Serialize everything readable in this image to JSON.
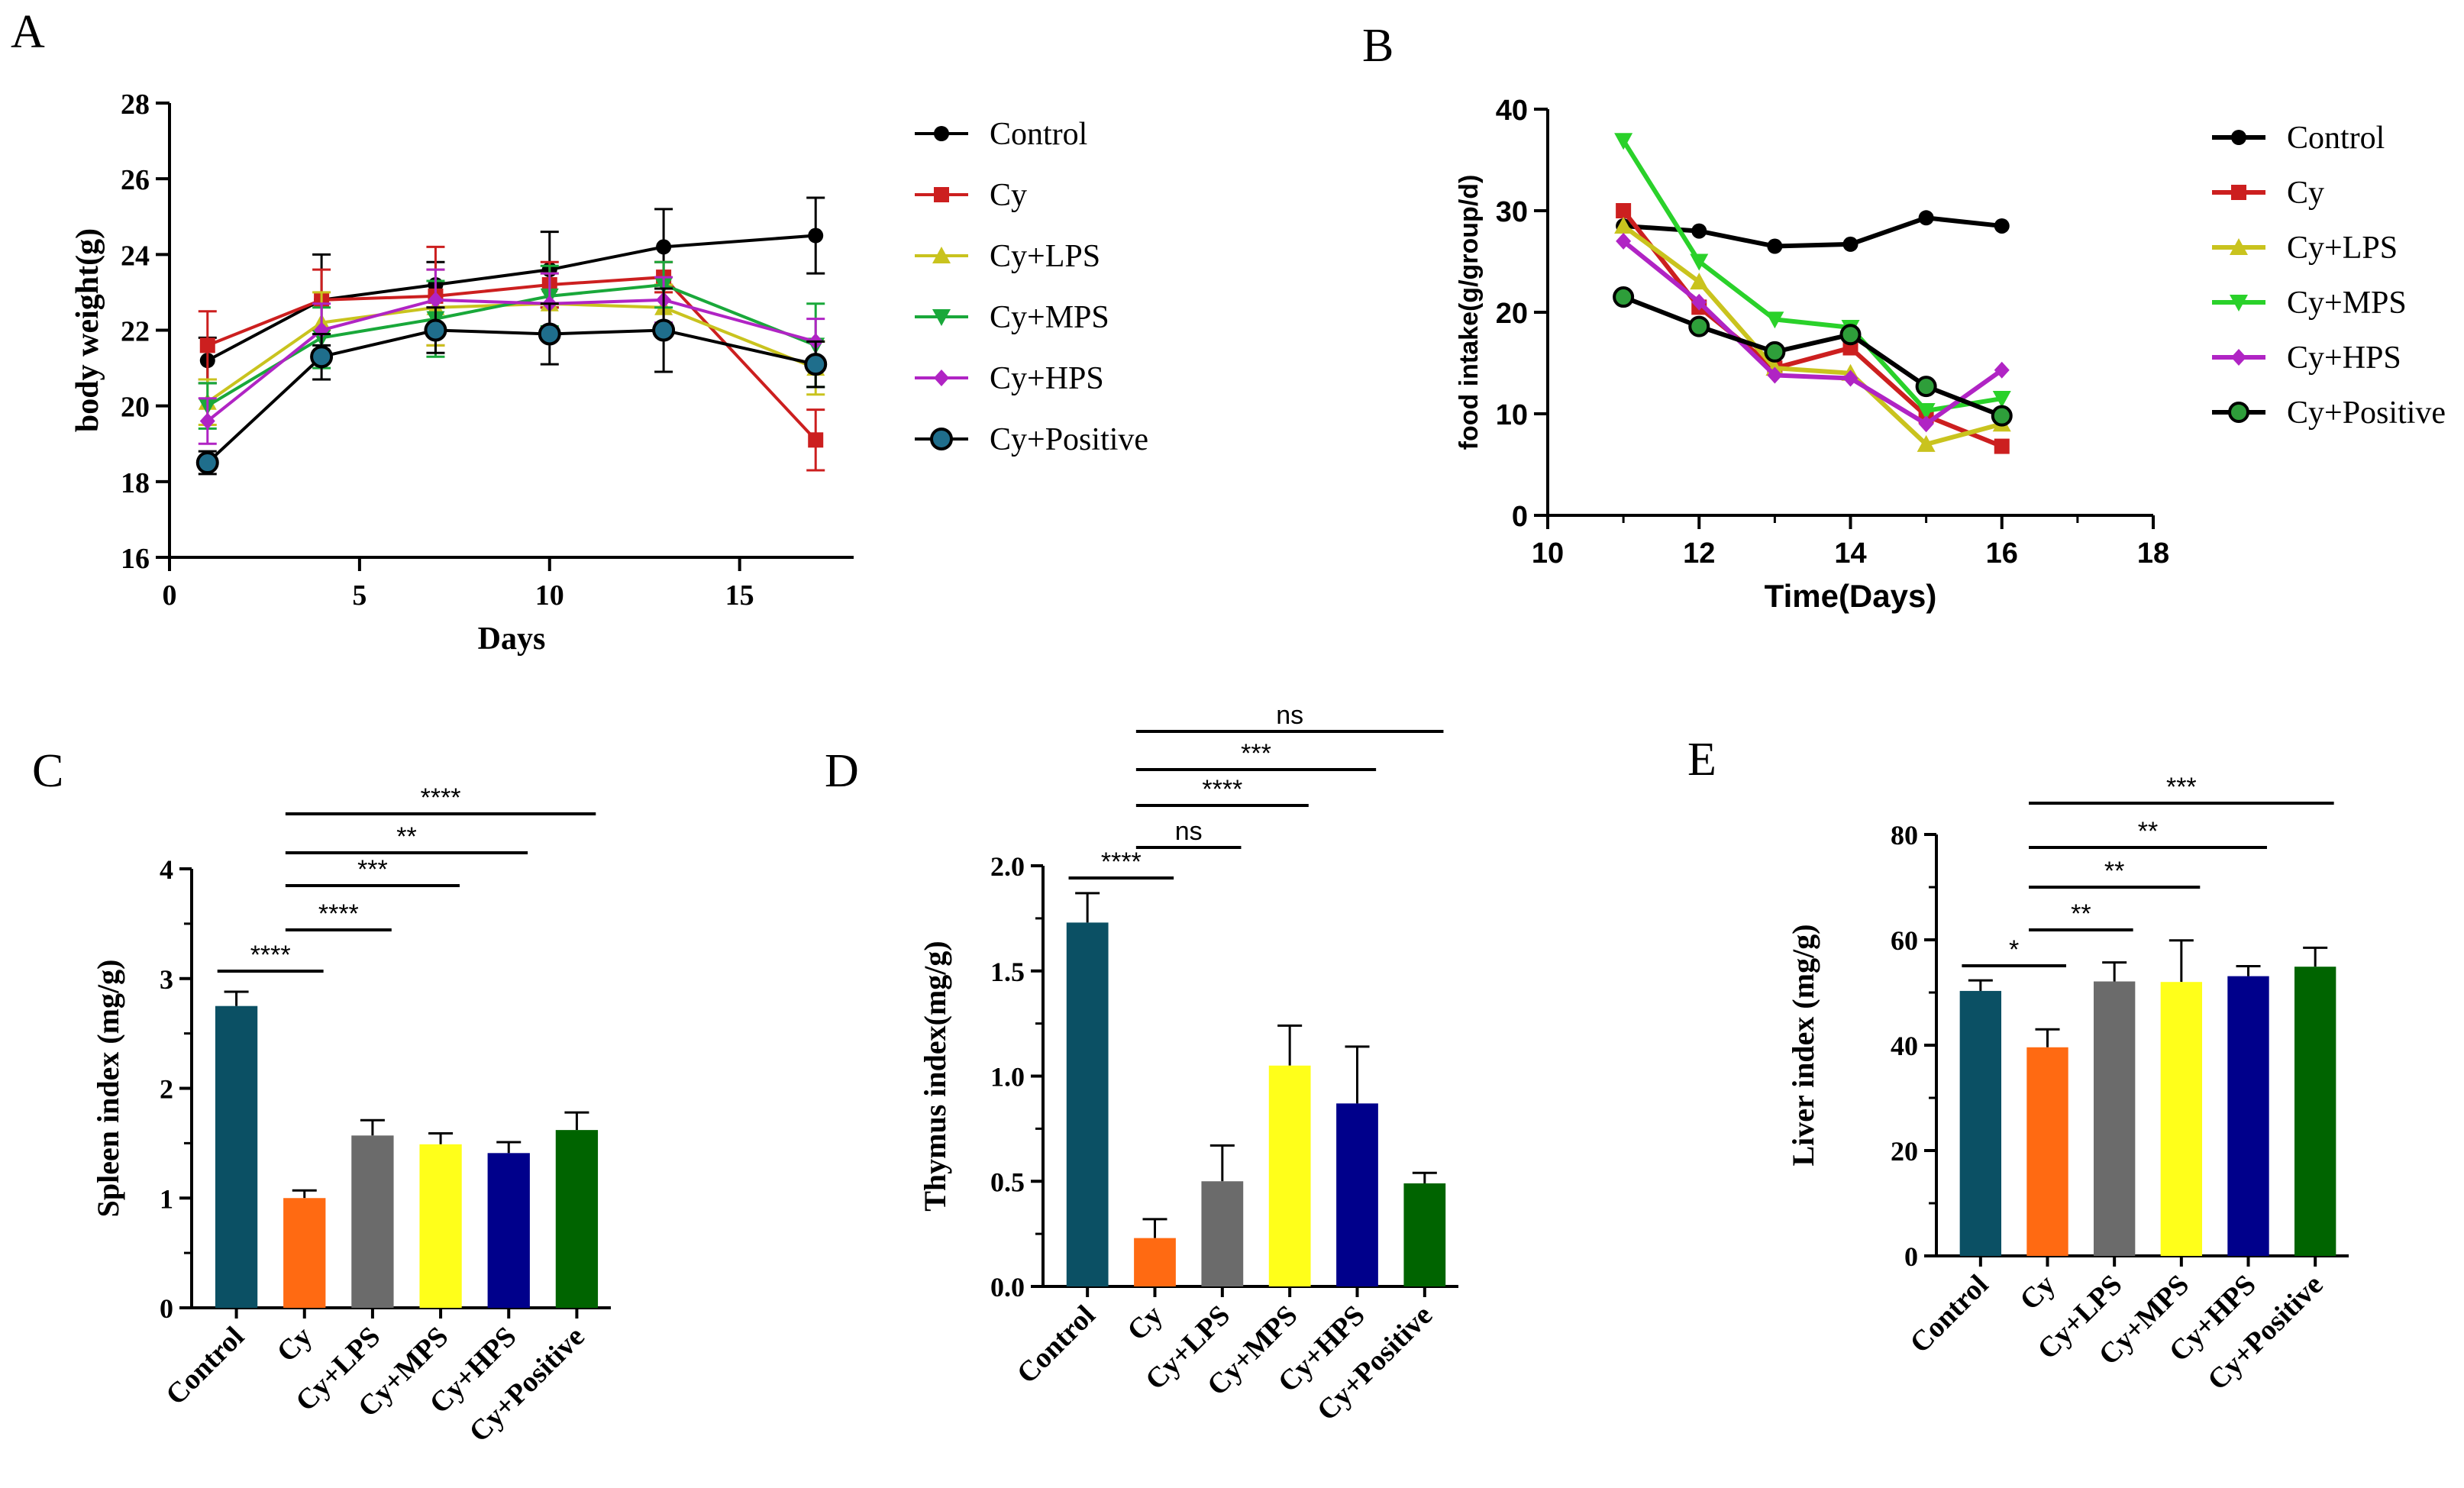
{
  "chart_data": [
    {
      "panel": "A",
      "type": "line",
      "xlabel": "Days",
      "ylabel": "body weight(g)",
      "xlim": [
        0,
        18
      ],
      "ylim": [
        16,
        28
      ],
      "xticks": [
        0,
        5,
        10,
        15
      ],
      "yticks": [
        16,
        18,
        20,
        22,
        24,
        26,
        28
      ],
      "x": [
        1,
        4,
        7,
        10,
        13,
        17
      ],
      "legend_position": "right",
      "series": [
        {
          "name": "Control",
          "color": "#000000",
          "marker": "circle",
          "values": [
            21.2,
            22.8,
            23.2,
            23.6,
            24.2,
            24.5
          ],
          "errors": [
            0.6,
            1.2,
            0.6,
            1.0,
            1.0,
            1.0
          ]
        },
        {
          "name": "Cy",
          "color": "#cc1f1f",
          "marker": "square",
          "values": [
            21.6,
            22.8,
            22.9,
            23.2,
            23.4,
            19.1
          ],
          "errors": [
            0.9,
            0.8,
            1.3,
            0.6,
            0.4,
            0.8
          ]
        },
        {
          "name": "Cy+LPS",
          "color": "#c9c31e",
          "marker": "triangle-up",
          "values": [
            20.1,
            22.2,
            22.6,
            22.7,
            22.6,
            21.0
          ],
          "errors": [
            0.6,
            0.8,
            1.0,
            0.8,
            0.6,
            0.7
          ]
        },
        {
          "name": "Cy+MPS",
          "color": "#19a83a",
          "marker": "triangle-down",
          "values": [
            20.0,
            21.8,
            22.3,
            22.9,
            23.2,
            21.6
          ],
          "errors": [
            0.6,
            0.8,
            1.0,
            0.8,
            0.6,
            1.1
          ]
        },
        {
          "name": "Cy+HPS",
          "color": "#b024c4",
          "marker": "diamond",
          "values": [
            19.6,
            22.0,
            22.8,
            22.7,
            22.8,
            21.7
          ],
          "errors": [
            0.6,
            0.7,
            0.8,
            0.8,
            0.6,
            0.6
          ]
        },
        {
          "name": "Cy+Positive",
          "color": "#1c4f5e",
          "marker": "circle-filled",
          "values": [
            18.5,
            21.3,
            22.0,
            21.9,
            22.0,
            21.1
          ],
          "errors": [
            0.3,
            0.6,
            0.6,
            0.8,
            1.1,
            0.6
          ]
        }
      ]
    },
    {
      "panel": "B",
      "type": "line",
      "xlabel": "Time(Days)",
      "ylabel": "food intake(g/group/d)",
      "xlim": [
        10,
        18
      ],
      "ylim": [
        0,
        40
      ],
      "xticks": [
        10,
        12,
        14,
        16,
        18
      ],
      "yticks": [
        0,
        10,
        20,
        30,
        40
      ],
      "x": [
        11,
        12,
        13,
        14,
        15,
        16
      ],
      "legend_position": "right",
      "series": [
        {
          "name": "Control",
          "color": "#000000",
          "marker": "circle",
          "values": [
            28.5,
            28.0,
            26.5,
            26.7,
            29.3,
            28.5
          ]
        },
        {
          "name": "Cy",
          "color": "#cc1f1f",
          "marker": "square",
          "values": [
            30.0,
            20.5,
            14.5,
            16.5,
            9.8,
            6.8
          ]
        },
        {
          "name": "Cy+LPS",
          "color": "#c9c31e",
          "marker": "triangle-up",
          "values": [
            28.5,
            23.0,
            14.5,
            14.0,
            7.0,
            9.0
          ]
        },
        {
          "name": "Cy+MPS",
          "color": "#2ad12a",
          "marker": "triangle-down",
          "values": [
            36.9,
            25.0,
            19.3,
            18.5,
            10.3,
            11.5
          ]
        },
        {
          "name": "Cy+HPS",
          "color": "#b024c4",
          "marker": "diamond",
          "values": [
            27.0,
            21.0,
            13.8,
            13.5,
            9.0,
            14.3
          ]
        },
        {
          "name": "Cy+Positive",
          "color": "#000000",
          "marker": "circle-green",
          "values": [
            21.5,
            18.6,
            16.1,
            17.8,
            12.7,
            9.8
          ]
        }
      ]
    },
    {
      "panel": "C",
      "type": "bar",
      "ylabel": "Spleen index (mg/g)",
      "categories": [
        "Control",
        "Cy",
        "Cy+LPS",
        "Cy+MPS",
        "Cy+HPS",
        "Cy+Positive"
      ],
      "values": [
        2.75,
        1.0,
        1.57,
        1.49,
        1.41,
        1.62
      ],
      "errors": [
        0.13,
        0.07,
        0.14,
        0.1,
        0.1,
        0.16
      ],
      "ylim": [
        0,
        4
      ],
      "yticks": [
        "0",
        "1",
        "2",
        "3",
        "4"
      ],
      "significance": [
        {
          "from": 0,
          "to": 1,
          "label": "****"
        },
        {
          "from": 1,
          "to": 2,
          "label": "****"
        },
        {
          "from": 1,
          "to": 3,
          "label": "***"
        },
        {
          "from": 1,
          "to": 4,
          "label": "**"
        },
        {
          "from": 1,
          "to": 5,
          "label": "****"
        }
      ]
    },
    {
      "panel": "D",
      "type": "bar",
      "ylabel": "Thymus index(mg/g)",
      "categories": [
        "Control",
        "Cy",
        "Cy+LPS",
        "Cy+MPS",
        "Cy+HPS",
        "Cy+Positive"
      ],
      "values": [
        1.73,
        0.23,
        0.5,
        1.05,
        0.87,
        0.49
      ],
      "errors": [
        0.14,
        0.09,
        0.17,
        0.19,
        0.27,
        0.05
      ],
      "ylim": [
        0,
        2.0
      ],
      "yticks": [
        "0.0",
        "0.5",
        "1.0",
        "1.5",
        "2.0"
      ],
      "significance": [
        {
          "from": 0,
          "to": 1,
          "label": "****"
        },
        {
          "from": 1,
          "to": 2,
          "label": "ns"
        },
        {
          "from": 1,
          "to": 3,
          "label": "****"
        },
        {
          "from": 1,
          "to": 4,
          "label": "***"
        },
        {
          "from": 1,
          "to": 5,
          "label": "ns"
        }
      ]
    },
    {
      "panel": "E",
      "type": "bar",
      "ylabel": "Liver index (mg/g)",
      "categories": [
        "Control",
        "Cy",
        "Cy+LPS",
        "Cy+MPS",
        "Cy+HPS",
        "Cy+Positive"
      ],
      "values": [
        50.3,
        39.6,
        52.1,
        52.0,
        53.1,
        54.9
      ],
      "errors": [
        2.0,
        3.4,
        3.6,
        7.9,
        1.9,
        3.6
      ],
      "ylim": [
        0,
        80
      ],
      "yticks": [
        "0",
        "20",
        "40",
        "60",
        "80"
      ],
      "significance": [
        {
          "from": 0,
          "to": 1,
          "label": "*"
        },
        {
          "from": 1,
          "to": 2,
          "label": "**"
        },
        {
          "from": 1,
          "to": 3,
          "label": "**"
        },
        {
          "from": 1,
          "to": 4,
          "label": "**"
        },
        {
          "from": 1,
          "to": 5,
          "label": "***"
        }
      ]
    }
  ],
  "bar_colors": [
    "#0b5064",
    "#ff6a12",
    "#6b6b6b",
    "#ffff1a",
    "#00008b",
    "#006400"
  ]
}
